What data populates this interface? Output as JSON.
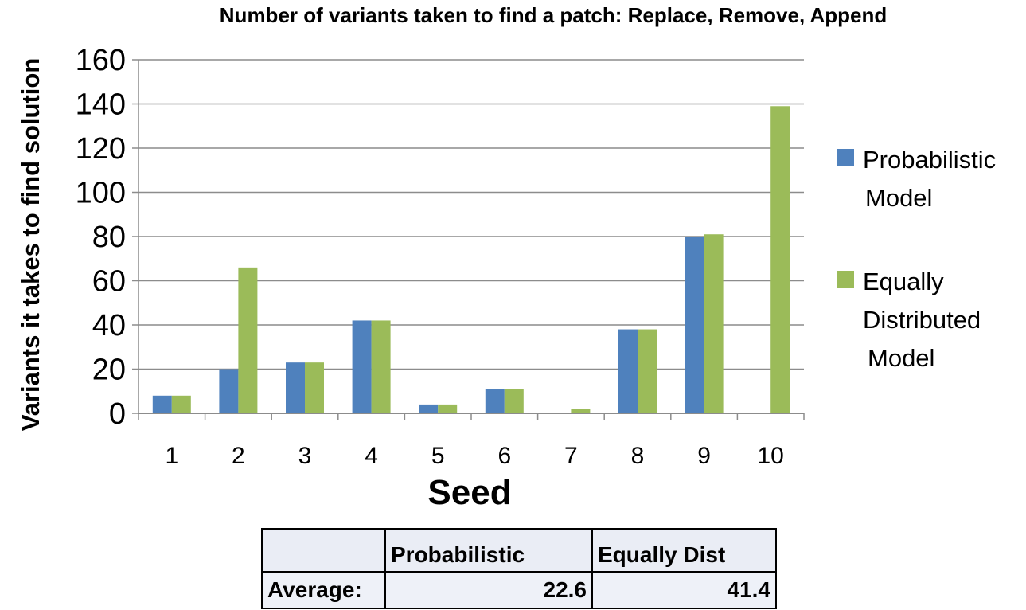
{
  "chart_data": {
    "type": "bar",
    "title": "Number of variants taken to find a patch: Replace, Remove, Append",
    "xlabel": "Seed",
    "ylabel": "Variants it takes to find solution",
    "categories": [
      "1",
      "2",
      "3",
      "4",
      "5",
      "6",
      "7",
      "8",
      "9",
      "10"
    ],
    "yticks": [
      "0",
      "20",
      "40",
      "60",
      "80",
      "100",
      "120",
      "140",
      "160"
    ],
    "ylim": [
      0,
      160
    ],
    "grid": true,
    "legend_position": "right",
    "series": [
      {
        "name": [
          "Probabilistic",
          "Model"
        ],
        "color": "#4f81bd",
        "values": [
          8,
          20,
          23,
          42,
          4,
          11,
          0,
          38,
          80,
          0
        ]
      },
      {
        "name": [
          "Equally",
          "Distributed",
          "Model"
        ],
        "color": "#9bbb59",
        "values": [
          8,
          66,
          23,
          42,
          4,
          11,
          2,
          38,
          81,
          139
        ]
      }
    ]
  },
  "summary_table": {
    "headers": [
      "",
      "Probabilistic",
      "Equally Dist"
    ],
    "row": {
      "label": "Average:",
      "values": [
        "22.6",
        "41.4"
      ]
    }
  }
}
